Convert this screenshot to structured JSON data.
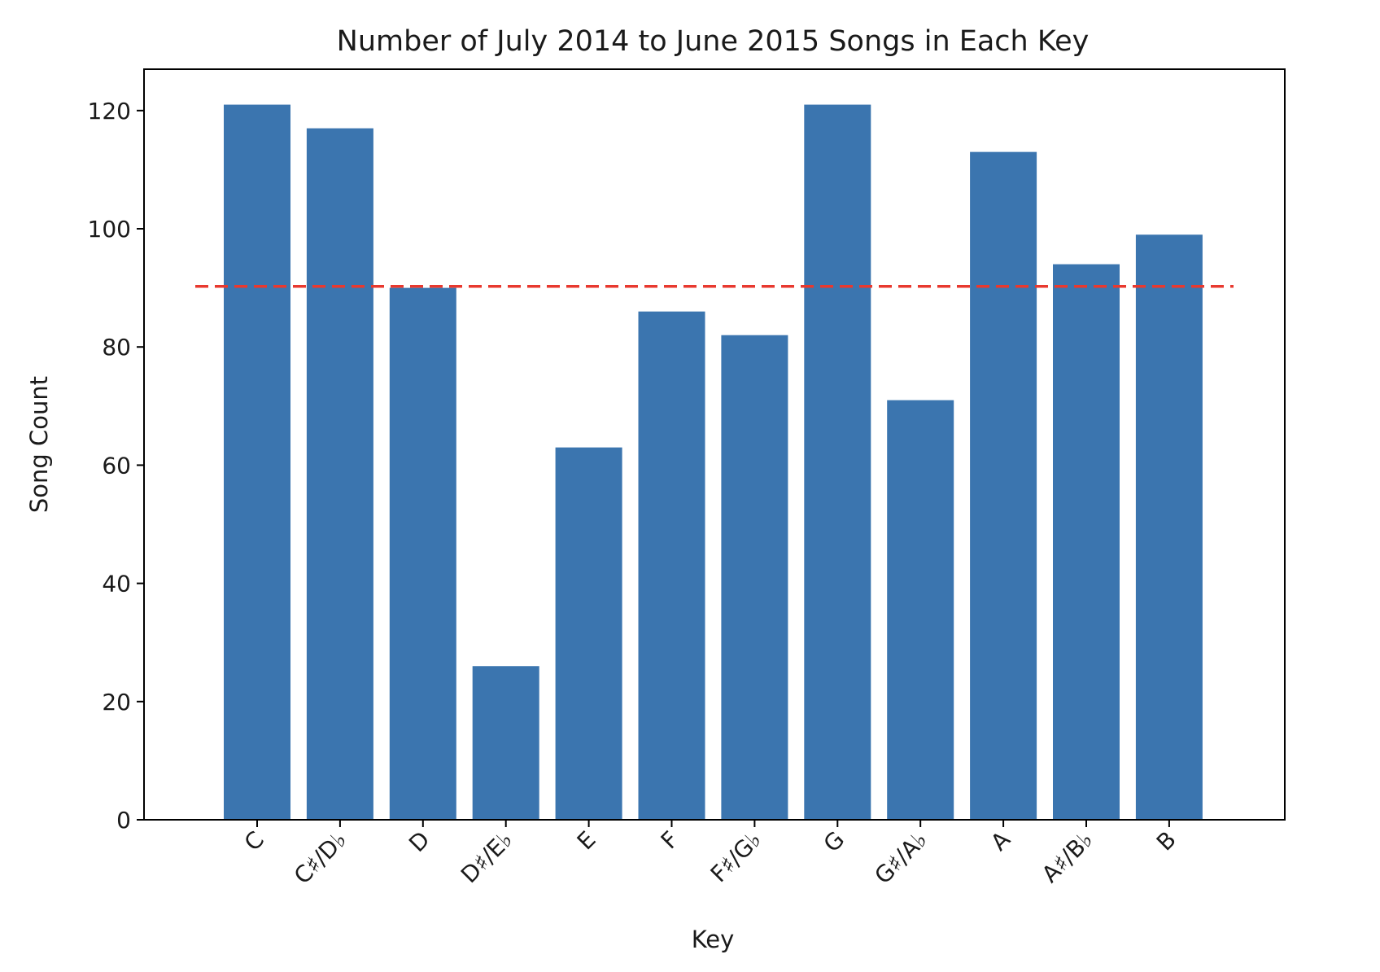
{
  "chart_data": {
    "type": "bar",
    "title": "Number of July 2014 to June 2015 Songs in Each Key",
    "xlabel": "Key",
    "ylabel": "Song Count",
    "categories": [
      "C",
      "C♯/D♭",
      "D",
      "D♯/E♭",
      "E",
      "F",
      "F♯/G♭",
      "G",
      "G♯/A♭",
      "A",
      "A♯/B♭",
      "B"
    ],
    "values": [
      121,
      117,
      90,
      26,
      63,
      86,
      82,
      121,
      71,
      113,
      94,
      99
    ],
    "ylim": [
      0,
      127
    ],
    "yticks": [
      0,
      20,
      40,
      60,
      80,
      100,
      120
    ],
    "reference_line": {
      "value": 90.25,
      "style": "dashed",
      "color": "#e8392f"
    },
    "bar_color": "#3b75af",
    "grid": false,
    "legend": "none",
    "xtick_rotation": 45
  }
}
